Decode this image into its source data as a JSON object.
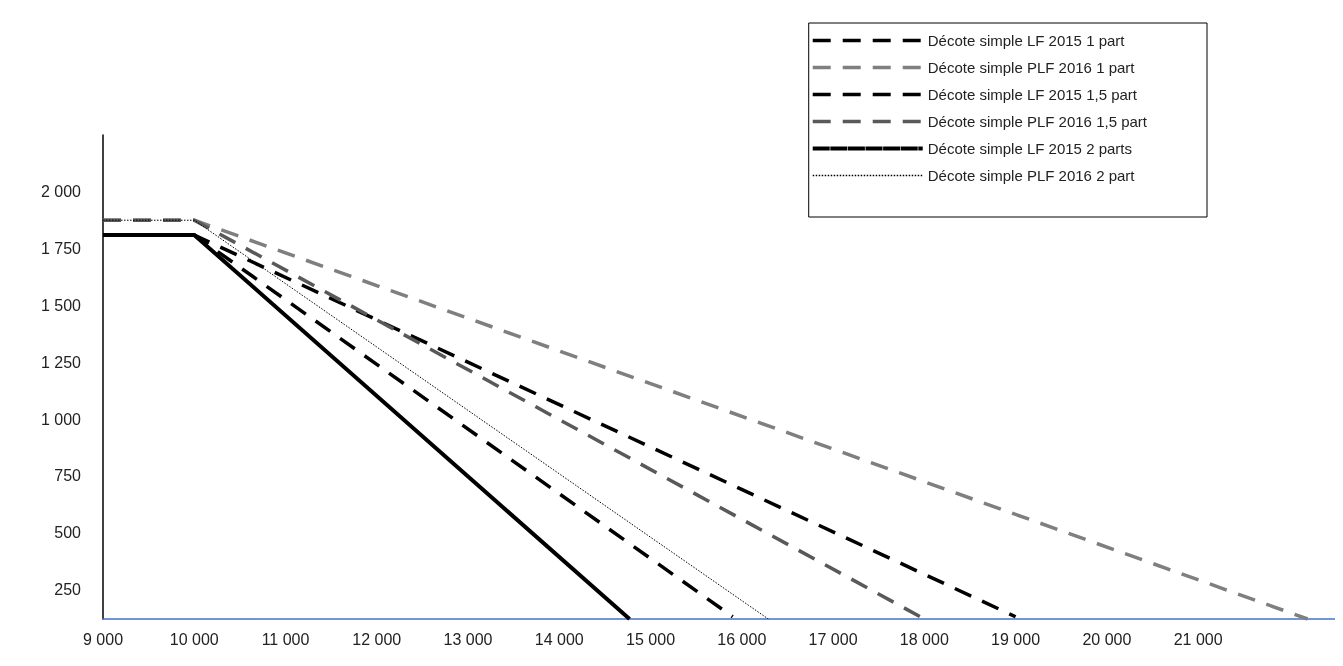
{
  "chart_data": {
    "type": "line",
    "series": [
      {
        "name": "Décote simple LF 2015 1 part",
        "color": "#000000",
        "line_style": "dashed",
        "x": [
          9000,
          10000,
          19000
        ],
        "values": [
          1810,
          1810,
          130
        ]
      },
      {
        "name": "Décote simple PLF 2016 1 part",
        "color": "#7f7f7f",
        "line_style": "dashed",
        "x": [
          9000,
          10000,
          22200
        ],
        "values": [
          1875,
          1875,
          120
        ]
      },
      {
        "name": "Décote simple LF 2015 1,5 part",
        "color": "#000000",
        "line_style": "dashed",
        "x": [
          9000,
          10000,
          15900
        ],
        "values": [
          1810,
          1810,
          130
        ]
      },
      {
        "name": "Décote simple PLF 2016 1,5 part",
        "color": "#595959",
        "line_style": "dashed",
        "x": [
          9000,
          10000,
          18000
        ],
        "values": [
          1875,
          1875,
          120
        ]
      },
      {
        "name": "Décote simple LF 2015 2 parts",
        "color": "#000000",
        "line_style": "solid",
        "x": [
          9000,
          10000,
          14770
        ],
        "values": [
          1810,
          1810,
          120
        ]
      },
      {
        "name": "Décote simple PLF 2016 2 part",
        "color": "#000000",
        "line_style": "dotted",
        "x": [
          9000,
          10000,
          16290
        ],
        "values": [
          1875,
          1875,
          120
        ]
      }
    ],
    "xlim": [
      9000,
      22500
    ],
    "xticks": [
      {
        "value": 9000,
        "label": "9 000"
      },
      {
        "value": 10000,
        "label": "10 000"
      },
      {
        "value": 11000,
        "label": "11 000"
      },
      {
        "value": 12000,
        "label": "12 000"
      },
      {
        "value": 13000,
        "label": "13 000"
      },
      {
        "value": 14000,
        "label": "14 000"
      },
      {
        "value": 15000,
        "label": "15 000"
      },
      {
        "value": 16000,
        "label": "16 000"
      },
      {
        "value": 17000,
        "label": "17 000"
      },
      {
        "value": 18000,
        "label": "18 000"
      },
      {
        "value": 19000,
        "label": "19 000"
      },
      {
        "value": 20000,
        "label": "20 000"
      },
      {
        "value": 21000,
        "label": "21 000"
      }
    ],
    "ylim": [
      120,
      2250
    ],
    "yticks": [
      250,
      500,
      750,
      {
        "value": 1000,
        "label": "1 000"
      },
      {
        "value": 1250,
        "label": "1 250"
      },
      {
        "value": 1500,
        "label": "1 500"
      },
      {
        "value": 1750,
        "label": "1 750"
      },
      {
        "value": 2000,
        "label": "2 000"
      }
    ],
    "legend": "top right",
    "grid": false,
    "marker": "none"
  }
}
